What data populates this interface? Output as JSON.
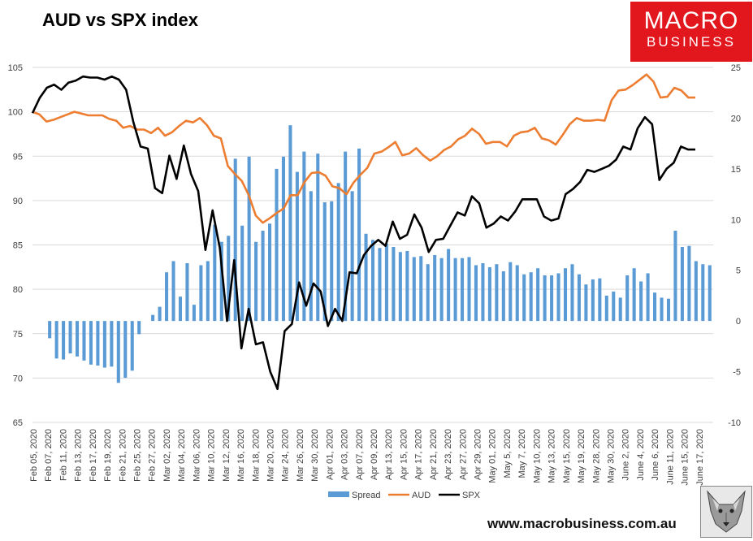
{
  "title": "AUD vs SPX index",
  "logo": {
    "line1": "MACRO",
    "line2": "BUSINESS"
  },
  "website": "www.macrobusiness.com.au",
  "chart_data": {
    "type": "bar",
    "title": "AUD vs SPX index",
    "colors": {
      "Spread": "#5b9bd5",
      "AUD": "#ed7d31",
      "SPX": "#000000"
    },
    "left_axis": {
      "min": 65,
      "max": 105,
      "ticks": [
        65,
        70,
        75,
        80,
        85,
        90,
        95,
        100,
        105
      ]
    },
    "right_axis": {
      "min": -10,
      "max": 25,
      "ticks": [
        -10,
        -5,
        0,
        5,
        10,
        15,
        20,
        25
      ]
    },
    "x_labels": [
      "Feb 05, 2020",
      "Feb 07, 2020",
      "Feb 11, 2020",
      "Feb 13, 2020",
      "Feb 17, 2020",
      "Feb 19, 2020",
      "Feb 21, 2020",
      "Feb 25, 2020",
      "Feb 27, 2020",
      "Mar 02, 2020",
      "Mar 04, 2020",
      "Mar 06, 2020",
      "Mar 10, 2020",
      "Mar 12, 2020",
      "Mar 16, 2020",
      "Mar 18, 2020",
      "Mar 20, 2020",
      "Mar 24, 2020",
      "Mar 26, 2020",
      "Mar 30, 2020",
      "Apr 01, 2020",
      "Apr 03, 2020",
      "Apr 07, 2020",
      "Apr 09, 2020",
      "Apr 13, 2020",
      "Apr 15, 2020",
      "Apr 17, 2020",
      "Apr 21, 2020",
      "Apr 23, 2020",
      "Apr 27, 2020",
      "Apr 29, 2020",
      "May 01, 2020",
      "May 5, 2020",
      "May 7, 2020",
      "May 10, 2020",
      "May 13, 2020",
      "May 15, 2020",
      "May 19, 2020",
      "May 28, 2020",
      "May 30, 2020",
      "June 2, 2020",
      "June 4, 2020",
      "June 6, 2020",
      "June 11, 2020",
      "June 15, 2020",
      "June 17, 2020"
    ],
    "series": [
      {
        "name": "Spread",
        "type": "bar",
        "axis": "right",
        "values": [
          0,
          0,
          -1.7,
          -3.7,
          -3.8,
          -3.2,
          -3.5,
          -3.9,
          -4.3,
          -4.4,
          -4.6,
          -4.5,
          -6.1,
          -5.6,
          -4.9,
          -1.3,
          0,
          0.6,
          1.4,
          4.8,
          5.9,
          2.4,
          5.7,
          1.6,
          5.5,
          5.9,
          9.5,
          7.8,
          8.4,
          16.0,
          9.4,
          16.2,
          7.8,
          8.9,
          9.6,
          15.0,
          16.2,
          19.3,
          14.7,
          16.7,
          12.8,
          16.5,
          11.7,
          11.8,
          13.6,
          16.7,
          12.8,
          17.0,
          8.6,
          8.0,
          7.2,
          7.6,
          7.3,
          6.8,
          6.9,
          6.3,
          6.4,
          5.6,
          6.5,
          6.2,
          7.1,
          6.2,
          6.2,
          6.3,
          5.5,
          5.7,
          5.3,
          5.6,
          4.9,
          5.8,
          5.5,
          4.6,
          4.8,
          5.2,
          4.5,
          4.5,
          4.7,
          5.2,
          5.6,
          4.6,
          3.6,
          4.1,
          4.2,
          2.5,
          2.9,
          2.3,
          4.5,
          5.2,
          3.9,
          4.7,
          2.8,
          2.3,
          2.2,
          8.9,
          7.3,
          7.4,
          5.9,
          5.6,
          5.5
        ]
      },
      {
        "name": "AUD",
        "type": "line",
        "axis": "left",
        "values": [
          100,
          99.7,
          98.9,
          99.1,
          99.4,
          99.7,
          100.0,
          99.8,
          99.6,
          99.6,
          99.6,
          99.2,
          99.0,
          98.2,
          98.4,
          98.0,
          98.0,
          97.6,
          98.2,
          97.3,
          97.7,
          98.4,
          99.0,
          98.8,
          99.3,
          98.5,
          97.3,
          97.0,
          93.9,
          93.0,
          92.2,
          90.6,
          88.3,
          87.5,
          88.0,
          88.6,
          89.1,
          90.6,
          90.6,
          92.1,
          93.1,
          93.2,
          92.8,
          91.6,
          91.4,
          90.7,
          92.0,
          92.9,
          93.7,
          95.3,
          95.5,
          96.0,
          96.6,
          95.1,
          95.3,
          95.9,
          95.1,
          94.5,
          95.0,
          95.7,
          96.1,
          96.9,
          97.3,
          98.1,
          97.5,
          96.4,
          96.6,
          96.6,
          96.1,
          97.3,
          97.7,
          97.8,
          98.2,
          97.0,
          96.8,
          96.3,
          97.4,
          98.6,
          99.3,
          99.0,
          99.0,
          99.1,
          99.0,
          101.3,
          102.4,
          102.5,
          103.0,
          103.6,
          104.2,
          103.4,
          101.6,
          101.7,
          102.7,
          102.4,
          101.6,
          101.6
        ]
      },
      {
        "name": "SPX",
        "type": "line",
        "axis": "right",
        "values": [
          20.5,
          22.0,
          23.0,
          23.3,
          22.8,
          23.5,
          23.7,
          24.1,
          24.0,
          24.0,
          23.8,
          24.1,
          23.8,
          22.8,
          19.6,
          17.2,
          17.0,
          13.1,
          12.6,
          16.3,
          14.0,
          17.3,
          14.5,
          12.8,
          7.0,
          10.9,
          7.2,
          0,
          6.0,
          -2.7,
          1.2,
          -2.3,
          -2.1,
          -5.0,
          -6.7,
          -1.0,
          -0.3,
          3.8,
          1.5,
          3.7,
          2.9,
          -0.5,
          1.2,
          0,
          4.8,
          4.7,
          6.5,
          7.4,
          8.0,
          7.4,
          9.8,
          8.1,
          8.5,
          10.5,
          9.2,
          6.8,
          8.0,
          8.1,
          9.4,
          10.7,
          10.4,
          12.3,
          11.6,
          9.2,
          9.6,
          10.3,
          9.9,
          10.8,
          12.0,
          12.0,
          12.0,
          10.3,
          9.9,
          10.1,
          12.5,
          13.0,
          13.7,
          14.9,
          14.7,
          15.0,
          15.3,
          15.9,
          17.2,
          16.9,
          19.0,
          20.1,
          19.4,
          13.9,
          15.0,
          15.6,
          17.2,
          16.9,
          16.9
        ]
      }
    ],
    "legend": {
      "position": "bottom",
      "entries": [
        "Spread",
        "AUD",
        "SPX"
      ]
    }
  }
}
